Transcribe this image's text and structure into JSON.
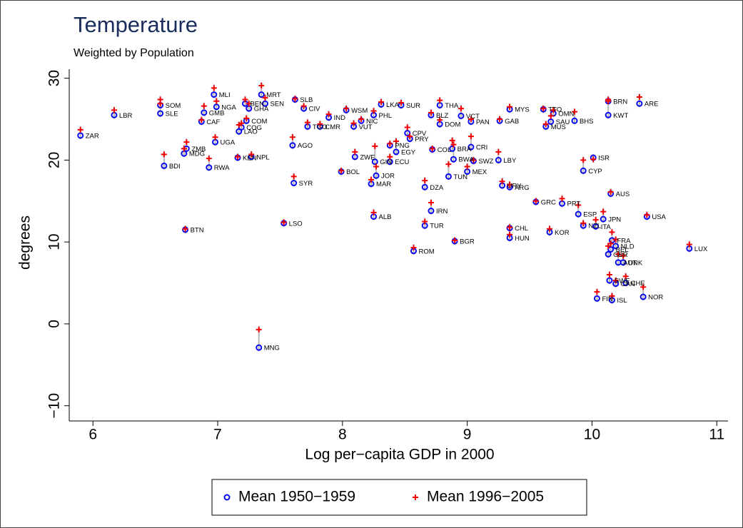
{
  "chart_data": {
    "type": "scatter",
    "title": "Temperature",
    "subtitle": "Weighted by Population",
    "x_label": "Log per−capita GDP in 2000",
    "y_label": "degrees",
    "xlim": [
      5.81,
      11.09
    ],
    "ylim": [
      -11.86,
      31.1
    ],
    "xticks": [
      6,
      7,
      8,
      9,
      10,
      11
    ],
    "yticks": [
      {
        "value": -10,
        "label": "−10"
      },
      0,
      10,
      20,
      30
    ],
    "grid": false,
    "legend": "bottom",
    "x": [
      5.9,
      6.17,
      6.54,
      6.54,
      6.57,
      6.73,
      6.75,
      6.74,
      6.93,
      6.89,
      6.87,
      6.99,
      6.97,
      6.98,
      7.16,
      7.27,
      7.17,
      7.19,
      7.23,
      7.22,
      7.25,
      7.35,
      7.38,
      7.33,
      7.53,
      7.6,
      7.61,
      7.62,
      7.69,
      7.72,
      7.82,
      7.89,
      7.99,
      8.03,
      8.09,
      8.1,
      8.15,
      8.25,
      8.23,
      8.25,
      8.26,
      8.27,
      8.31,
      8.38,
      8.38,
      8.43,
      8.47,
      8.52,
      8.54,
      8.57,
      8.66,
      8.66,
      8.71,
      8.71,
      8.72,
      8.78,
      8.78,
      8.85,
      8.88,
      8.89,
      8.9,
      8.95,
      9.0,
      9.03,
      9.03,
      9.05,
      9.25,
      9.26,
      9.28,
      9.34,
      9.34,
      9.34,
      9.34,
      9.55,
      9.63,
      9.61,
      9.66,
      9.67,
      9.69,
      9.76,
      9.86,
      9.89,
      9.93,
      9.93,
      10.01,
      10.03,
      10.04,
      10.09,
      10.13,
      10.13,
      10.13,
      10.14,
      10.15,
      10.15,
      10.16,
      10.16,
      10.19,
      10.19,
      10.21,
      10.25,
      10.27,
      10.38,
      10.41,
      10.44,
      10.78
    ],
    "point_labels": [
      "ZAR",
      "LBR",
      "SLE",
      "SOM",
      "BDI",
      "MDG",
      "ZMB",
      "BTN",
      "RWA",
      "GMB",
      "CAF",
      "NGA",
      "MLI",
      "UGA",
      "KEN",
      "NPL",
      "LAO",
      "COG",
      "COM",
      "BEN",
      "GHA",
      "MRT",
      "SEN",
      "MNG",
      "LSO",
      "AGO",
      "SYR",
      "SLB",
      "CIV",
      "TGO",
      "CMR",
      "IND",
      "BOL",
      "WSM",
      "VUT",
      "ZWE",
      "NIC",
      "ALB",
      "MAR",
      "PHL",
      "GIN",
      "JOR",
      "LKA",
      "ECU",
      "PNG",
      "EGY",
      "SUR",
      "CPV",
      "PRY",
      "ROM",
      "DZA",
      "TUR",
      "IRN",
      "BLZ",
      "COL",
      "THA",
      "DOM",
      "TUN",
      "BRA",
      "BWA",
      "BGR",
      "VCT",
      "MEX",
      "PAN",
      "CRI",
      "SWZ",
      "LBY",
      "GAB",
      "URY",
      "MYS",
      "ARG",
      "CHL",
      "HUN",
      "GRC",
      "MUS",
      "TTO",
      "KOR",
      "SAU",
      "OMN",
      "PRT",
      "BHS",
      "ESP",
      "NZL",
      "CYP",
      "ISR",
      "ITA",
      "FIN",
      "JPN",
      "BRN",
      "KWT",
      "GBR",
      "SWE",
      "BEL",
      "AUS",
      "FRA",
      "ISL",
      "NLD",
      "CAN",
      "AUT",
      "DNK",
      "CHE",
      "ARE",
      "NOR",
      "USA",
      "LUX"
    ],
    "series": [
      {
        "name": "Mean 1950−1959",
        "color": "#0a0af0",
        "marker": "circle",
        "values": [
          23.0,
          25.5,
          25.7,
          26.7,
          19.3,
          20.8,
          21.4,
          11.5,
          19.1,
          25.8,
          24.7,
          26.5,
          28.0,
          22.2,
          20.3,
          20.4,
          23.5,
          24.0,
          24.8,
          26.9,
          26.3,
          28.0,
          26.9,
          -2.9,
          12.3,
          21.8,
          17.2,
          27.4,
          26.3,
          24.1,
          24.1,
          25.2,
          18.6,
          26.1,
          24.1,
          20.4,
          24.8,
          13.1,
          17.1,
          25.5,
          19.8,
          18.1,
          26.8,
          19.8,
          21.8,
          21.0,
          26.7,
          23.3,
          22.6,
          8.9,
          16.7,
          12.0,
          13.8,
          25.5,
          21.3,
          26.7,
          24.4,
          18.0,
          21.4,
          20.1,
          10.1,
          25.4,
          18.6,
          24.7,
          21.6,
          19.9,
          20.0,
          24.8,
          16.9,
          26.2,
          16.7,
          11.7,
          10.5,
          14.9,
          24.1,
          26.2,
          11.2,
          24.7,
          25.7,
          14.7,
          24.8,
          13.4,
          12.0,
          18.7,
          20.3,
          11.9,
          3.1,
          12.8,
          27.2,
          25.5,
          8.5,
          5.3,
          9.1,
          15.9,
          10.2,
          2.9,
          9.5,
          4.9,
          7.5,
          7.5,
          5.0,
          26.9,
          3.3,
          13.1,
          9.2
        ]
      },
      {
        "name": "Mean 1996−2005",
        "color": "#f00000",
        "marker": "plus",
        "values": [
          23.7,
          26.1,
          27.4,
          26.9,
          20.7,
          21.4,
          22.2,
          11.6,
          20.2,
          26.6,
          24.9,
          27.2,
          28.8,
          22.8,
          20.4,
          20.7,
          24.3,
          24.5,
          25.1,
          27.4,
          26.9,
          29.1,
          27.6,
          -0.7,
          12.4,
          22.8,
          18.0,
          27.5,
          26.6,
          24.6,
          24.4,
          25.6,
          18.7,
          26.3,
          24.5,
          21.0,
          25.0,
          13.6,
          17.6,
          26.0,
          21.7,
          19.2,
          27.1,
          20.4,
          22.0,
          22.3,
          27.0,
          24.0,
          22.9,
          9.3,
          17.5,
          12.5,
          14.8,
          25.8,
          21.4,
          27.3,
          24.9,
          19.5,
          22.4,
          21.9,
          10.2,
          26.3,
          19.2,
          25.0,
          22.9,
          20.0,
          21.0,
          25.0,
          17.4,
          26.5,
          17.0,
          11.8,
          10.9,
          15.0,
          24.4,
          26.3,
          11.6,
          25.4,
          26.1,
          15.3,
          25.9,
          14.5,
          12.3,
          20.0,
          20.1,
          12.7,
          3.9,
          13.7,
          27.4,
          27.2,
          9.5,
          6.0,
          9.8,
          16.1,
          11.2,
          3.4,
          10.3,
          5.3,
          8.5,
          8.3,
          5.8,
          27.7,
          4.5,
          13.3,
          9.7
        ]
      }
    ]
  }
}
